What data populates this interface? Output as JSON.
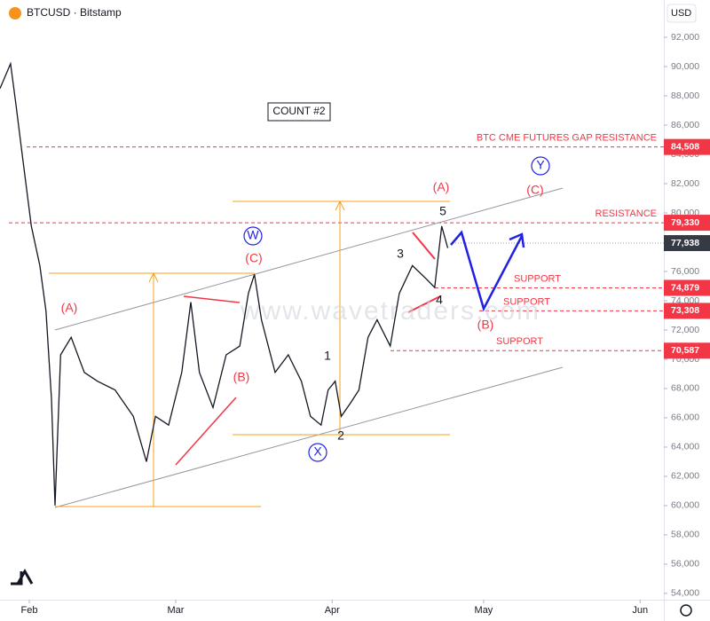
{
  "chart_data": {
    "type": "line",
    "title": "BTCUSD · Bitstamp",
    "currency": "USD",
    "annotation": "COUNT #2",
    "watermark": "www.wavetraders.com",
    "color": "#131722",
    "series": [
      {
        "name": "BTCUSD",
        "x": [
          -5.8,
          -3.7,
          -2.6,
          -1.4,
          0.4,
          2.1,
          3.3,
          4.4,
          5.1,
          6.2,
          8.3,
          10.9,
          13.5,
          17.0,
          20.6,
          23.2,
          25.0,
          27.6,
          30.2,
          32.0,
          33.7,
          36.4,
          39.0,
          41.7,
          43.4,
          44.6,
          46.0,
          48.7,
          51.3,
          53.9,
          55.7,
          57.8,
          59.2,
          60.6,
          61.8,
          63.6,
          65.3,
          67.1,
          68.9,
          71.5,
          73.3,
          75.9,
          78.6,
          80.3,
          81.7,
          82.9
        ],
        "values": [
          88500,
          90200,
          87300,
          84000,
          79100,
          76400,
          73300,
          67300,
          60000,
          70300,
          71500,
          69100,
          68500,
          67900,
          66100,
          63000,
          66100,
          65500,
          69100,
          73900,
          69100,
          66700,
          70300,
          70900,
          74500,
          75800,
          72700,
          69100,
          70300,
          68500,
          66100,
          65500,
          67900,
          68500,
          66100,
          67000,
          67900,
          71500,
          72700,
          70900,
          74500,
          76400,
          75500,
          74900,
          79100,
          77600
        ]
      }
    ],
    "xlim": [
      -5.8,
      125.7
    ],
    "ylim": [
      53570,
      94550
    ],
    "xticks": [
      {
        "value": 0,
        "label": "Feb"
      },
      {
        "value": 29,
        "label": "Mar"
      },
      {
        "value": 60,
        "label": "Apr"
      },
      {
        "value": 90,
        "label": "May"
      },
      {
        "value": 121,
        "label": "Jun"
      }
    ],
    "yticks": [
      {
        "value": 54000,
        "label": "54,000"
      },
      {
        "value": 56000,
        "label": "56,000"
      },
      {
        "value": 58000,
        "label": "58,000"
      },
      {
        "value": 60000,
        "label": "60,000"
      },
      {
        "value": 62000,
        "label": "62,000"
      },
      {
        "value": 64000,
        "label": "64,000"
      },
      {
        "value": 66000,
        "label": "66,000"
      },
      {
        "value": 68000,
        "label": "68,000"
      },
      {
        "value": 70000,
        "label": "70,000"
      },
      {
        "value": 72000,
        "label": "72,000"
      },
      {
        "value": 74000,
        "label": "74,000"
      },
      {
        "value": 76000,
        "label": "76,000"
      },
      {
        "value": 78000,
        "label": "78,000"
      },
      {
        "value": 80000,
        "label": "80,000"
      },
      {
        "value": 82000,
        "label": "82,000"
      },
      {
        "value": 84000,
        "label": "84,000"
      },
      {
        "value": 86000,
        "label": "86,000"
      },
      {
        "value": 88000,
        "label": "88,000"
      },
      {
        "value": 90000,
        "label": "90,000"
      },
      {
        "value": 92000,
        "label": "92,000"
      }
    ],
    "levels": [
      {
        "value": 84508,
        "value_label": "84,508",
        "label": "BTC CME FUTURES GAP RESISTANCE"
      },
      {
        "value": 79330,
        "value_label": "79,330",
        "label": "RESISTANCE"
      },
      {
        "value": 74879,
        "value_label": "74,879",
        "label": "SUPPORT"
      },
      {
        "value": 73308,
        "value_label": "73,308",
        "label": "SUPPORT"
      },
      {
        "value": 70587,
        "value_label": "70,587",
        "label": "SUPPORT"
      }
    ],
    "last_price": {
      "value": 77938,
      "value_label": "77,938"
    },
    "wave_labels": [
      "(A)",
      "(B)",
      "(C)",
      "W",
      "X",
      "Y",
      "1",
      "2",
      "3",
      "4",
      "5",
      "(A)",
      "(B)",
      "(C)"
    ]
  }
}
